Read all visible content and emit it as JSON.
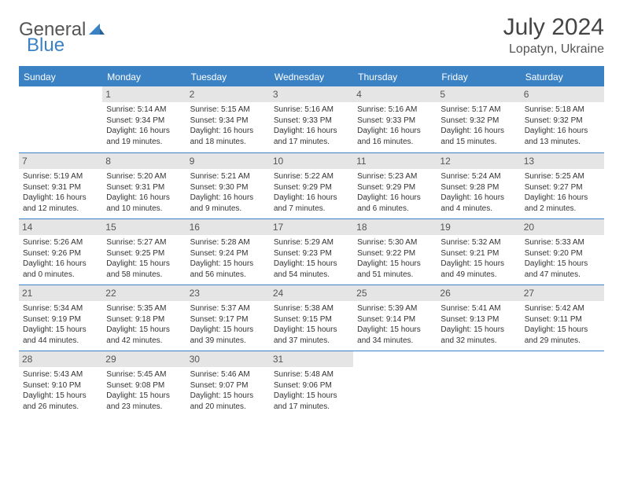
{
  "logo": {
    "general": "General",
    "blue": "Blue"
  },
  "title": "July 2024",
  "location": "Lopatyn, Ukraine",
  "dow": [
    "Sunday",
    "Monday",
    "Tuesday",
    "Wednesday",
    "Thursday",
    "Friday",
    "Saturday"
  ],
  "colors": {
    "brand": "#3b82c4",
    "header_bg": "#3b82c4",
    "header_text": "#ffffff",
    "daynum_bg": "#e5e5e5",
    "text": "#333333"
  },
  "weeks": [
    [
      {
        "n": "",
        "sr": "",
        "ss": "",
        "dl": ""
      },
      {
        "n": "1",
        "sr": "Sunrise: 5:14 AM",
        "ss": "Sunset: 9:34 PM",
        "dl": "Daylight: 16 hours and 19 minutes."
      },
      {
        "n": "2",
        "sr": "Sunrise: 5:15 AM",
        "ss": "Sunset: 9:34 PM",
        "dl": "Daylight: 16 hours and 18 minutes."
      },
      {
        "n": "3",
        "sr": "Sunrise: 5:16 AM",
        "ss": "Sunset: 9:33 PM",
        "dl": "Daylight: 16 hours and 17 minutes."
      },
      {
        "n": "4",
        "sr": "Sunrise: 5:16 AM",
        "ss": "Sunset: 9:33 PM",
        "dl": "Daylight: 16 hours and 16 minutes."
      },
      {
        "n": "5",
        "sr": "Sunrise: 5:17 AM",
        "ss": "Sunset: 9:32 PM",
        "dl": "Daylight: 16 hours and 15 minutes."
      },
      {
        "n": "6",
        "sr": "Sunrise: 5:18 AM",
        "ss": "Sunset: 9:32 PM",
        "dl": "Daylight: 16 hours and 13 minutes."
      }
    ],
    [
      {
        "n": "7",
        "sr": "Sunrise: 5:19 AM",
        "ss": "Sunset: 9:31 PM",
        "dl": "Daylight: 16 hours and 12 minutes."
      },
      {
        "n": "8",
        "sr": "Sunrise: 5:20 AM",
        "ss": "Sunset: 9:31 PM",
        "dl": "Daylight: 16 hours and 10 minutes."
      },
      {
        "n": "9",
        "sr": "Sunrise: 5:21 AM",
        "ss": "Sunset: 9:30 PM",
        "dl": "Daylight: 16 hours and 9 minutes."
      },
      {
        "n": "10",
        "sr": "Sunrise: 5:22 AM",
        "ss": "Sunset: 9:29 PM",
        "dl": "Daylight: 16 hours and 7 minutes."
      },
      {
        "n": "11",
        "sr": "Sunrise: 5:23 AM",
        "ss": "Sunset: 9:29 PM",
        "dl": "Daylight: 16 hours and 6 minutes."
      },
      {
        "n": "12",
        "sr": "Sunrise: 5:24 AM",
        "ss": "Sunset: 9:28 PM",
        "dl": "Daylight: 16 hours and 4 minutes."
      },
      {
        "n": "13",
        "sr": "Sunrise: 5:25 AM",
        "ss": "Sunset: 9:27 PM",
        "dl": "Daylight: 16 hours and 2 minutes."
      }
    ],
    [
      {
        "n": "14",
        "sr": "Sunrise: 5:26 AM",
        "ss": "Sunset: 9:26 PM",
        "dl": "Daylight: 16 hours and 0 minutes."
      },
      {
        "n": "15",
        "sr": "Sunrise: 5:27 AM",
        "ss": "Sunset: 9:25 PM",
        "dl": "Daylight: 15 hours and 58 minutes."
      },
      {
        "n": "16",
        "sr": "Sunrise: 5:28 AM",
        "ss": "Sunset: 9:24 PM",
        "dl": "Daylight: 15 hours and 56 minutes."
      },
      {
        "n": "17",
        "sr": "Sunrise: 5:29 AM",
        "ss": "Sunset: 9:23 PM",
        "dl": "Daylight: 15 hours and 54 minutes."
      },
      {
        "n": "18",
        "sr": "Sunrise: 5:30 AM",
        "ss": "Sunset: 9:22 PM",
        "dl": "Daylight: 15 hours and 51 minutes."
      },
      {
        "n": "19",
        "sr": "Sunrise: 5:32 AM",
        "ss": "Sunset: 9:21 PM",
        "dl": "Daylight: 15 hours and 49 minutes."
      },
      {
        "n": "20",
        "sr": "Sunrise: 5:33 AM",
        "ss": "Sunset: 9:20 PM",
        "dl": "Daylight: 15 hours and 47 minutes."
      }
    ],
    [
      {
        "n": "21",
        "sr": "Sunrise: 5:34 AM",
        "ss": "Sunset: 9:19 PM",
        "dl": "Daylight: 15 hours and 44 minutes."
      },
      {
        "n": "22",
        "sr": "Sunrise: 5:35 AM",
        "ss": "Sunset: 9:18 PM",
        "dl": "Daylight: 15 hours and 42 minutes."
      },
      {
        "n": "23",
        "sr": "Sunrise: 5:37 AM",
        "ss": "Sunset: 9:17 PM",
        "dl": "Daylight: 15 hours and 39 minutes."
      },
      {
        "n": "24",
        "sr": "Sunrise: 5:38 AM",
        "ss": "Sunset: 9:15 PM",
        "dl": "Daylight: 15 hours and 37 minutes."
      },
      {
        "n": "25",
        "sr": "Sunrise: 5:39 AM",
        "ss": "Sunset: 9:14 PM",
        "dl": "Daylight: 15 hours and 34 minutes."
      },
      {
        "n": "26",
        "sr": "Sunrise: 5:41 AM",
        "ss": "Sunset: 9:13 PM",
        "dl": "Daylight: 15 hours and 32 minutes."
      },
      {
        "n": "27",
        "sr": "Sunrise: 5:42 AM",
        "ss": "Sunset: 9:11 PM",
        "dl": "Daylight: 15 hours and 29 minutes."
      }
    ],
    [
      {
        "n": "28",
        "sr": "Sunrise: 5:43 AM",
        "ss": "Sunset: 9:10 PM",
        "dl": "Daylight: 15 hours and 26 minutes."
      },
      {
        "n": "29",
        "sr": "Sunrise: 5:45 AM",
        "ss": "Sunset: 9:08 PM",
        "dl": "Daylight: 15 hours and 23 minutes."
      },
      {
        "n": "30",
        "sr": "Sunrise: 5:46 AM",
        "ss": "Sunset: 9:07 PM",
        "dl": "Daylight: 15 hours and 20 minutes."
      },
      {
        "n": "31",
        "sr": "Sunrise: 5:48 AM",
        "ss": "Sunset: 9:06 PM",
        "dl": "Daylight: 15 hours and 17 minutes."
      },
      {
        "n": "",
        "sr": "",
        "ss": "",
        "dl": ""
      },
      {
        "n": "",
        "sr": "",
        "ss": "",
        "dl": ""
      },
      {
        "n": "",
        "sr": "",
        "ss": "",
        "dl": ""
      }
    ]
  ]
}
